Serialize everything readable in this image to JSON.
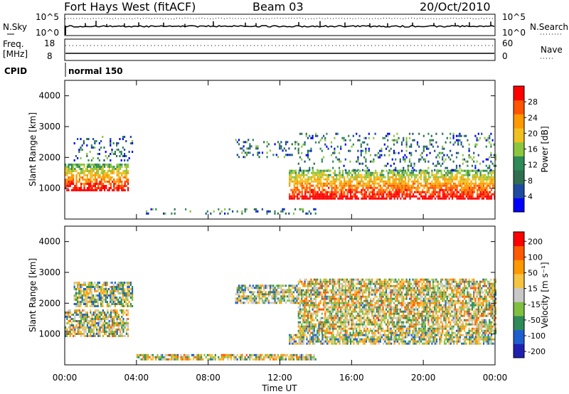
{
  "header": {
    "station": "Fort Hays West (fitACF)",
    "beam": "Beam 03",
    "date": "20/Oct/2010"
  },
  "noise_panel": {
    "left_label": "N.Sky",
    "left_ticks": [
      "10^5",
      "10^0"
    ],
    "right_label": "N.Search",
    "right_ticks": [
      "10^5",
      "10^0"
    ]
  },
  "freq_panel": {
    "left_label_line1": "Freq.",
    "left_label_line2": "[MHz]",
    "left_ticks": [
      "18",
      "8"
    ],
    "right_label": "Nave",
    "right_ticks": [
      "60",
      "0"
    ]
  },
  "cpid": {
    "label": "CPID",
    "program": "normal 150"
  },
  "colors": {
    "power_scale": [
      "#0000ff",
      "#1e4ba0",
      "#2f6f4f",
      "#2e8b57",
      "#8cc63f",
      "#f0c020",
      "#ff9900",
      "#ff5500",
      "#ff0000"
    ],
    "velocity_scale": [
      "#2020b0",
      "#1e5fd0",
      "#2e8b57",
      "#7fc040",
      "#c8c8c8",
      "#f5c542",
      "#ff9900",
      "#ff5a00",
      "#ff0000"
    ]
  },
  "chart_data": [
    {
      "type": "heatmap",
      "quantity": "power",
      "ylabel": "Slant Range [km]",
      "xlabel": "",
      "xlim": [
        0,
        24
      ],
      "ylim": [
        0,
        4500
      ],
      "yticks": [
        "1000",
        "2000",
        "3000",
        "4000"
      ],
      "colorbar": {
        "label": "Power [dB]",
        "range": [
          0,
          32
        ],
        "ticks": [
          "4",
          "8",
          "12",
          "16",
          "20",
          "24",
          "28"
        ]
      },
      "echo_regions": [
        {
          "t_start": 0.0,
          "t_end": 3.5,
          "r_min": 950,
          "r_max": 1800,
          "level": "strong"
        },
        {
          "t_start": 0.5,
          "t_end": 3.8,
          "r_min": 1900,
          "r_max": 2700,
          "level": "weak"
        },
        {
          "t_start": 9.5,
          "t_end": 13.0,
          "r_min": 2000,
          "r_max": 2600,
          "level": "weak"
        },
        {
          "t_start": 12.5,
          "t_end": 24.0,
          "r_min": 700,
          "r_max": 1600,
          "level": "strong"
        },
        {
          "t_start": 13.0,
          "t_end": 24.0,
          "r_min": 1600,
          "r_max": 2800,
          "level": "weak"
        },
        {
          "t_start": 4.0,
          "t_end": 14.0,
          "r_min": 150,
          "r_max": 350,
          "level": "weak"
        }
      ]
    },
    {
      "type": "heatmap",
      "quantity": "velocity",
      "ylabel": "Slant Range [km]",
      "xlabel": "Time UT",
      "xlim": [
        0,
        24
      ],
      "ylim": [
        0,
        4500
      ],
      "xticks": [
        "00:00",
        "04:00",
        "08:00",
        "12:00",
        "16:00",
        "20:00",
        "00:00"
      ],
      "yticks": [
        "1000",
        "2000",
        "3000",
        "4000"
      ],
      "colorbar": {
        "label": "Velocity [m s⁻¹]",
        "range": [
          -250,
          250
        ],
        "ticks": [
          "200",
          "100",
          "50",
          "15",
          "-15",
          "-50",
          "-100",
          "-200"
        ]
      },
      "echo_regions": [
        {
          "t_start": 0.0,
          "t_end": 3.5,
          "r_min": 950,
          "r_max": 1800,
          "v_mean": -20
        },
        {
          "t_start": 0.5,
          "t_end": 3.8,
          "r_min": 1900,
          "r_max": 2700,
          "v_mean": 0
        },
        {
          "t_start": 9.5,
          "t_end": 13.0,
          "r_min": 2000,
          "r_max": 2600,
          "v_mean": 0
        },
        {
          "t_start": 12.5,
          "t_end": 24.0,
          "r_min": 700,
          "r_max": 1000,
          "v_mean": 0
        },
        {
          "t_start": 13.0,
          "t_end": 24.0,
          "r_min": 1000,
          "r_max": 2800,
          "v_mean": -40
        },
        {
          "t_start": 4.0,
          "t_end": 14.0,
          "r_min": 150,
          "r_max": 350,
          "v_mean": -30
        }
      ]
    }
  ]
}
